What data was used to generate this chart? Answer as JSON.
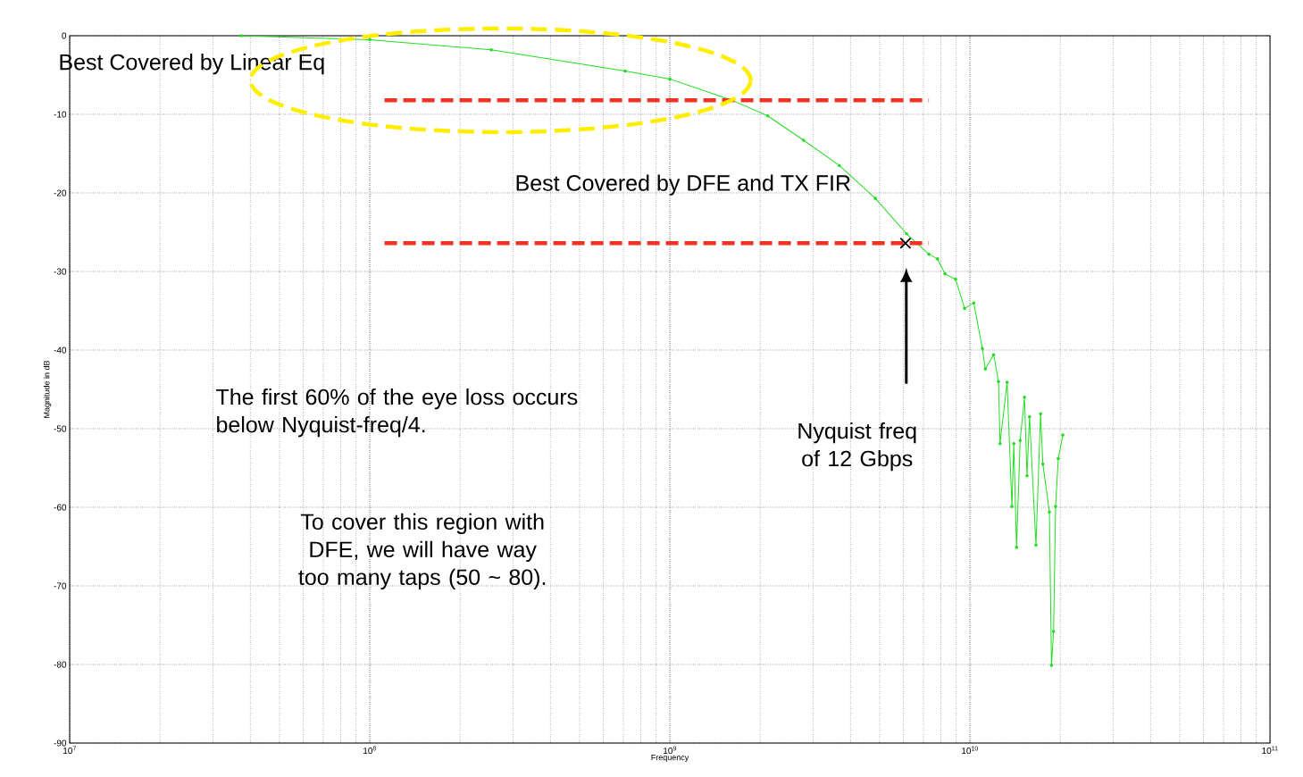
{
  "chart_data": {
    "type": "line",
    "log": "x",
    "grid": true,
    "xlabel": "Frequency",
    "ylabel": "Magnitude in dB",
    "xlim": [
      10000000.0,
      100000000000.0
    ],
    "ylim": [
      -90,
      0
    ],
    "xticks": [
      {
        "value": 10000000.0,
        "label": "10$^{7}$"
      },
      {
        "value": 100000000.0,
        "label": "10$^{8}$"
      },
      {
        "value": 1000000000.0,
        "label": "10$^{9}$"
      },
      {
        "value": 10000000000.0,
        "label": "10$^{10}$"
      },
      {
        "value": 100000000000.0,
        "label": "10$^{11}$"
      }
    ],
    "yticks": [
      -90,
      -80,
      -70,
      -60,
      -50,
      -40,
      -30,
      -20,
      -10,
      0
    ],
    "series": [
      {
        "color": "#22dd22",
        "marker": "circle",
        "x": [
          37300000.0,
          100000000.0,
          254000000.0,
          710000000.0,
          1000000000.0,
          1610000000.0,
          2120000000.0,
          2790000000.0,
          3670000000.0,
          4840000000.0,
          6150000000.0,
          7300000000.0,
          7800000000.0,
          8260000000.0,
          8960000000.0,
          9600000000.0,
          10300000000.0,
          11000000000.0,
          11250000000.0,
          12000000000.0,
          12450000000.0,
          12600000000.0,
          13300000000.0,
          13800000000.0,
          14000000000.0,
          14300000000.0,
          14700000000.0,
          15200000000.0,
          15500000000.0,
          15800000000.0,
          16600000000.0,
          17200000000.0,
          17500000000.0,
          18400000000.0,
          18700000000.0,
          19000000000.0,
          19300000000.0,
          19700000000.0,
          20400000000.0
        ],
        "values": [
          0,
          -0.5,
          -1.8,
          -4.5,
          -5.5,
          -8.2,
          -10.2,
          -13.3,
          -16.5,
          -20.7,
          -25.2,
          -27.8,
          -28.4,
          -30.3,
          -31,
          -34.7,
          -34,
          -39.8,
          -42.4,
          -40.6,
          -44,
          -51.9,
          -44.1,
          -59.9,
          -51.9,
          -65.1,
          -51.5,
          -46,
          -56,
          -48.5,
          -64.8,
          -48.1,
          -54.5,
          -60.6,
          -80.1,
          -75.8,
          -59.9,
          -53.8,
          -50.8
        ]
      },
      {
        "type": "line",
        "color": "#ee3322",
        "marker": "none",
        "line_style": "dashed",
        "x": [
          112000000.0,
          7300000000.0
        ],
        "values": [
          -8.2,
          -8.2
        ]
      },
      {
        "type": "line",
        "color": "#ee3322",
        "marker": "none",
        "line_style": "dashed",
        "x": [
          112000000.0,
          7300000000.0
        ],
        "values": [
          -26.4,
          -26.4
        ]
      },
      {
        "type": "scatter",
        "color": "#000000",
        "marker": "cross",
        "x": [
          6100000000.0
        ],
        "values": [
          -26.4
        ]
      }
    ],
    "annotations": [
      "Best Covered by Linear Eq",
      "Best Covered by DFE and TX FIR",
      "The first 60% of the eye loss occurs below Nyquist-freq/4.",
      "To cover this region with DFE, we will have way too many taps (50 ~ 80).",
      "Nyquist  freq of 12 Gbps"
    ]
  }
}
